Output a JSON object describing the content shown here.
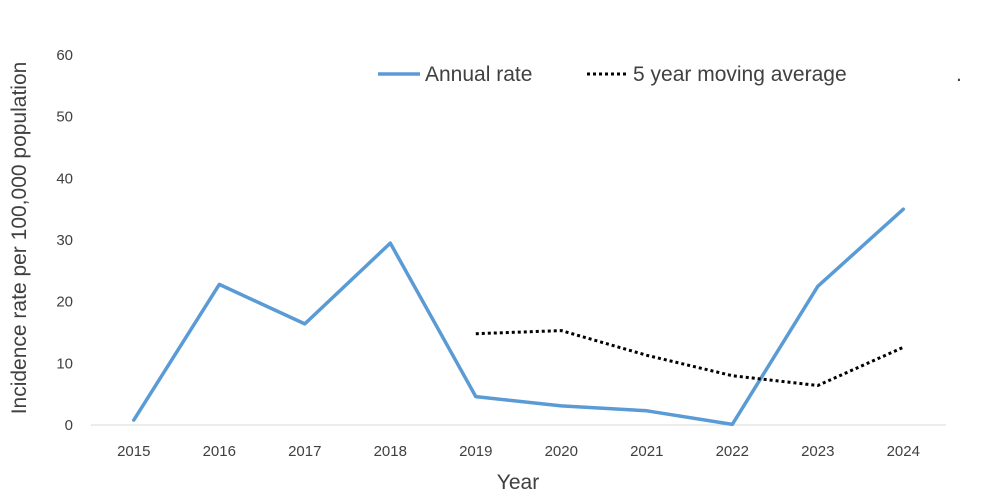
{
  "chart_data": {
    "type": "line",
    "title": "",
    "xlabel": "Year",
    "ylabel": "Incidence rate per 100,000 population",
    "categories": [
      "2015",
      "2016",
      "2017",
      "2018",
      "2019",
      "2020",
      "2021",
      "2022",
      "2023",
      "2024"
    ],
    "yticks": [
      "0",
      "10",
      "20",
      "30",
      "40",
      "50",
      "60"
    ],
    "ylim": [
      0,
      60
    ],
    "grid": false,
    "legend_position": "top",
    "legend_extra": ".",
    "series": [
      {
        "name": "Annual rate",
        "style": "solid",
        "color": "#5b9bd5",
        "values": [
          0.8,
          22.8,
          16.4,
          29.5,
          4.6,
          3.1,
          2.3,
          0.1,
          22.5,
          35.0
        ]
      },
      {
        "name": "5 year moving average",
        "style": "dotted",
        "color": "#000000",
        "values": [
          null,
          null,
          null,
          null,
          14.8,
          15.3,
          11.3,
          8.0,
          6.4,
          12.6
        ]
      }
    ]
  }
}
